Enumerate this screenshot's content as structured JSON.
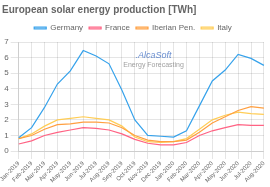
{
  "chart_data": {
    "type": "line",
    "title": "European solar energy production [TWh]",
    "categories": [
      "Jan-2019",
      "Feb-2019",
      "Mar-2019",
      "Apr-2019",
      "May-2019",
      "Jun-2019",
      "Jul-2019",
      "Aug-2019",
      "Sep-2019",
      "Oct-2019",
      "Nov-2019",
      "Dec-2019",
      "Jan-2020",
      "Feb-2020",
      "Mar-2020",
      "Apr-2020",
      "May-2020",
      "Jun-2020",
      "Jul-2020",
      "Aug-2020"
    ],
    "series": [
      {
        "name": "Germany",
        "values": [
          0.85,
          1.5,
          2.8,
          4.3,
          5.15,
          6.45,
          6.1,
          5.6,
          3.9,
          2.0,
          1.0,
          0.95,
          0.9,
          1.3,
          2.9,
          4.5,
          5.2,
          6.2,
          5.95,
          5.5
        ]
      },
      {
        "name": "France",
        "values": [
          0.45,
          0.65,
          1.0,
          1.2,
          1.35,
          1.5,
          1.45,
          1.35,
          1.1,
          0.75,
          0.5,
          0.4,
          0.4,
          0.55,
          1.0,
          1.3,
          1.5,
          1.7,
          1.65,
          1.65
        ]
      },
      {
        "name": "Iberian Pen.",
        "values": [
          0.8,
          1.0,
          1.4,
          1.7,
          1.75,
          1.85,
          1.85,
          1.8,
          1.5,
          1.0,
          0.7,
          0.6,
          0.6,
          0.7,
          1.2,
          1.8,
          2.2,
          2.6,
          2.85,
          2.75
        ]
      },
      {
        "name": "Italy",
        "values": [
          0.8,
          1.1,
          1.6,
          2.0,
          2.1,
          2.2,
          2.1,
          2.0,
          1.6,
          0.9,
          0.6,
          0.55,
          0.6,
          0.8,
          1.4,
          2.0,
          2.3,
          2.5,
          2.4,
          2.35
        ]
      }
    ],
    "ylim": [
      0,
      7
    ],
    "yticks": [
      0,
      1,
      2,
      3,
      4,
      5,
      6,
      7
    ],
    "grid": true,
    "legend": "top",
    "annotations": [
      ".AlcaSoft",
      "Energy Forecasting"
    ]
  }
}
